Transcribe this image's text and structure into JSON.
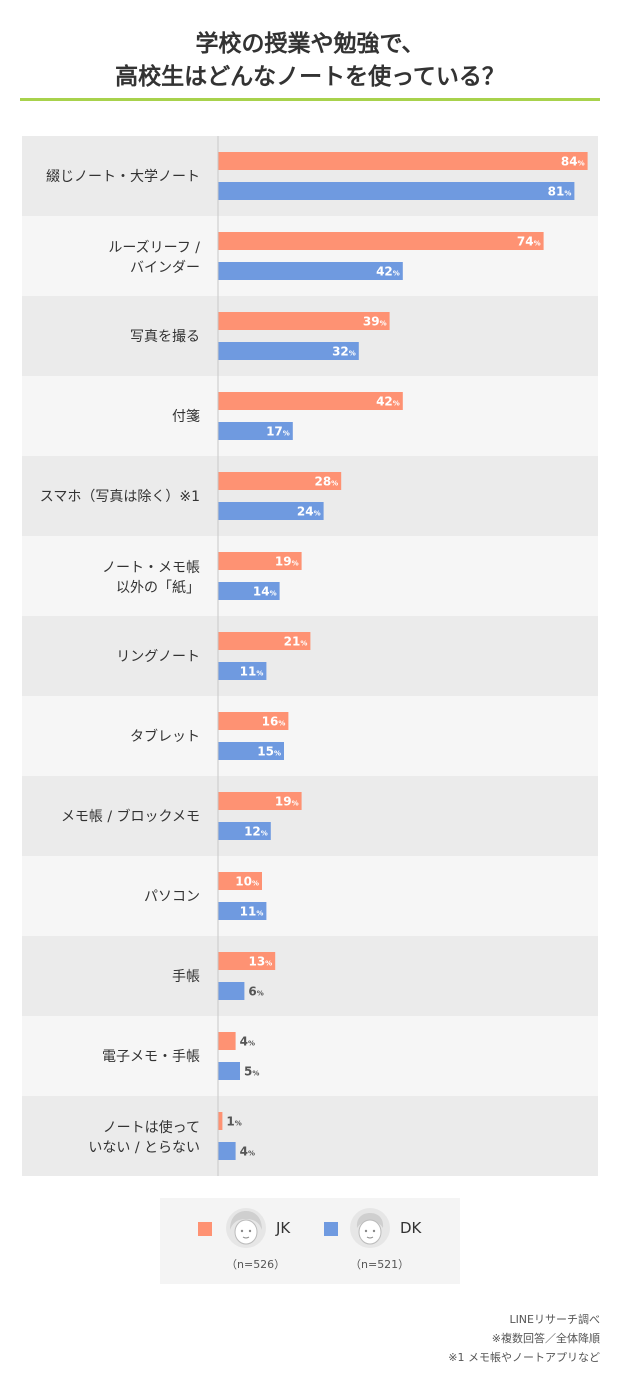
{
  "title_line1": "学校の授業や勉強で、",
  "title_line2": "高校生はどんなノートを使っている？",
  "chart_data": {
    "type": "bar",
    "orientation": "horizontal",
    "categories": [
      [
        "綴じノート・大学ノート"
      ],
      [
        "ルーズリーフ /",
        "バインダー"
      ],
      [
        "写真を撮る"
      ],
      [
        "付箋"
      ],
      [
        "スマホ（写真は除く）※1"
      ],
      [
        "ノート・メモ帳",
        "以外の「紙」"
      ],
      [
        "リングノート"
      ],
      [
        "タブレット"
      ],
      [
        "メモ帳 / ブロックメモ"
      ],
      [
        "パソコン"
      ],
      [
        "手帳"
      ],
      [
        "電子メモ・手帳"
      ],
      [
        "ノートは使って",
        "いない / とらない"
      ]
    ],
    "series": [
      {
        "name": "JK",
        "values": [
          84,
          74,
          39,
          42,
          28,
          19,
          21,
          16,
          19,
          10,
          13,
          4,
          1
        ],
        "color": "#fe9273"
      },
      {
        "name": "DK",
        "values": [
          81,
          42,
          32,
          17,
          24,
          14,
          11,
          15,
          12,
          11,
          6,
          5,
          4
        ],
        "color": "#6f9ae0"
      }
    ],
    "unit": "%",
    "xlim": [
      0,
      100
    ],
    "row_colors": [
      "#ebebeb",
      "#f6f6f6"
    ],
    "label_color_inside": "#ffffff",
    "label_color_outside": "#555555"
  },
  "legend": {
    "items": [
      {
        "name": "JK",
        "n": "（n=526）",
        "color": "#fe9273",
        "icon": "girl-face-icon"
      },
      {
        "name": "DK",
        "n": "（n=521）",
        "color": "#6f9ae0",
        "icon": "boy-face-icon"
      }
    ]
  },
  "footnotes": [
    "LINEリサーチ調べ",
    "※複数回答／全体降順",
    "※1 メモ帳やノートアプリなど"
  ]
}
